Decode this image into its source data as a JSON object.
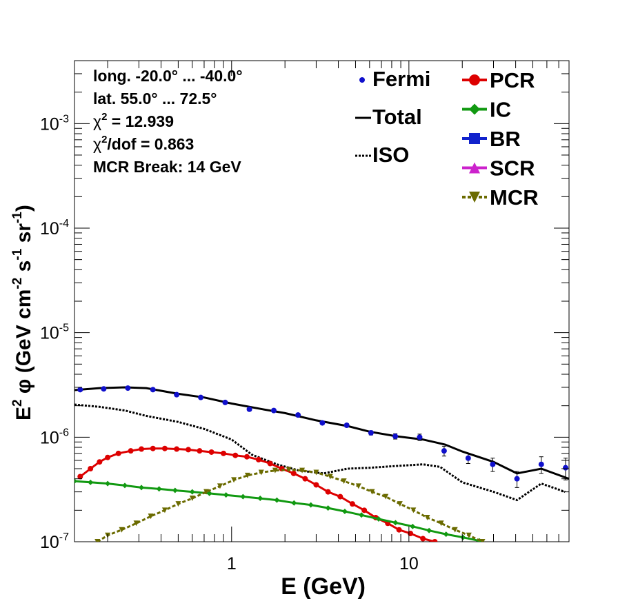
{
  "chart_data": {
    "type": "line",
    "xlabel": "E (GeV)",
    "ylabel_main": "E",
    "ylabel_rest": " φ (GeV cm",
    "ylabel_unit1": " s",
    "ylabel_unit2": " sr",
    "ylabel_sup2": "2",
    "ylabel_supm2": "-2",
    "ylabel_supm1": "-1",
    "xscale": "log",
    "yscale": "log",
    "xlim": [
      0.13,
      80
    ],
    "ylim": [
      1e-07,
      0.004
    ],
    "x_tick_labels": [
      {
        "value": 1,
        "label": "1"
      },
      {
        "value": 10,
        "label": "10"
      }
    ],
    "y_tick_labels": [
      {
        "value": 1e-07,
        "base": "10",
        "exp": "-7"
      },
      {
        "value": 1e-06,
        "base": "10",
        "exp": "-6"
      },
      {
        "value": 1e-05,
        "base": "10",
        "exp": "-5"
      },
      {
        "value": 0.0001,
        "base": "10",
        "exp": "-4"
      },
      {
        "value": 0.001,
        "base": "10",
        "exp": "-3"
      }
    ],
    "info_lines": [
      {
        "text": "long. -20.0° ... -40.0°"
      },
      {
        "text": "lat. 55.0° ... 72.5°"
      },
      {
        "pre": "χ",
        "sup": "2",
        "text": " = 12.939"
      },
      {
        "pre": "χ",
        "sup": "2",
        "text": "/dof = 0.863"
      },
      {
        "text": "MCR Break: 14 GeV"
      }
    ],
    "legend_left": [
      {
        "label": "Fermi",
        "style": "point"
      },
      {
        "label": "Total",
        "style": "solid"
      },
      {
        "label": "ISO",
        "style": "dotted"
      }
    ],
    "legend_right": [
      {
        "label": "PCR",
        "color": "#dd0000",
        "marker": "circle"
      },
      {
        "label": "IC",
        "color": "#119911",
        "marker": "diamond"
      },
      {
        "label": "BR",
        "color": "#1122cc",
        "marker": "square"
      },
      {
        "label": "SCR",
        "color": "#cc22cc",
        "marker": "triangle-up"
      },
      {
        "label": "MCR",
        "color": "#6b6b00",
        "marker": "triangle-down",
        "dashed": true
      }
    ],
    "series": [
      {
        "name": "Fermi",
        "kind": "errorpoints",
        "color": "#1010cc",
        "points": [
          {
            "x": 0.14,
            "y": 2.85e-06,
            "err": 8e-08
          },
          {
            "x": 0.19,
            "y": 2.9e-06,
            "err": 8e-08
          },
          {
            "x": 0.26,
            "y": 2.95e-06,
            "err": 8e-08
          },
          {
            "x": 0.36,
            "y": 2.85e-06,
            "err": 8e-08
          },
          {
            "x": 0.49,
            "y": 2.55e-06,
            "err": 8e-08
          },
          {
            "x": 0.67,
            "y": 2.4e-06,
            "err": 8e-08
          },
          {
            "x": 0.92,
            "y": 2.15e-06,
            "err": 7e-08
          },
          {
            "x": 1.26,
            "y": 1.85e-06,
            "err": 6e-08
          },
          {
            "x": 1.73,
            "y": 1.8e-06,
            "err": 6e-08
          },
          {
            "x": 2.37,
            "y": 1.63e-06,
            "err": 6e-08
          },
          {
            "x": 3.25,
            "y": 1.37e-06,
            "err": 5e-08
          },
          {
            "x": 4.46,
            "y": 1.3e-06,
            "err": 5e-08
          },
          {
            "x": 6.11,
            "y": 1.1e-06,
            "err": 5e-08
          },
          {
            "x": 8.38,
            "y": 1.02e-06,
            "err": 6e-08
          },
          {
            "x": 11.5,
            "y": 1e-06,
            "err": 7e-08
          },
          {
            "x": 15.8,
            "y": 7.4e-07,
            "err": 8e-08
          },
          {
            "x": 21.6,
            "y": 6.3e-07,
            "err": 7e-08
          },
          {
            "x": 29.7,
            "y": 5.5e-07,
            "err": 8e-08
          },
          {
            "x": 40.7,
            "y": 4e-07,
            "err": 7e-08
          },
          {
            "x": 55.8,
            "y": 5.5e-07,
            "err": 1e-07
          },
          {
            "x": 76.5,
            "y": 5.1e-07,
            "err": 1.2e-07
          }
        ]
      },
      {
        "name": "Total",
        "kind": "line",
        "color": "#000000",
        "dash": "",
        "points": [
          [
            0.13,
            2.82e-06
          ],
          [
            0.18,
            2.95e-06
          ],
          [
            0.25,
            3e-06
          ],
          [
            0.33,
            2.95e-06
          ],
          [
            0.5,
            2.6e-06
          ],
          [
            0.7,
            2.4e-06
          ],
          [
            1.0,
            2.1e-06
          ],
          [
            1.5,
            1.85e-06
          ],
          [
            2.0,
            1.7e-06
          ],
          [
            3.0,
            1.45e-06
          ],
          [
            4.5,
            1.28e-06
          ],
          [
            6.0,
            1.13e-06
          ],
          [
            8.5,
            1.02e-06
          ],
          [
            12.0,
            9.5e-07
          ],
          [
            16.0,
            8.5e-07
          ],
          [
            20.0,
            7.3e-07
          ],
          [
            30.0,
            5.8e-07
          ],
          [
            40.7,
            4.5e-07
          ],
          [
            55.8,
            5e-07
          ],
          [
            80.0,
            4e-07
          ]
        ]
      },
      {
        "name": "ISO",
        "kind": "line",
        "color": "#000000",
        "dash": "3,2",
        "points": [
          [
            0.13,
            2.05e-06
          ],
          [
            0.18,
            1.95e-06
          ],
          [
            0.25,
            1.8e-06
          ],
          [
            0.33,
            1.6e-06
          ],
          [
            0.5,
            1.4e-06
          ],
          [
            0.7,
            1.2e-06
          ],
          [
            1.0,
            9.5e-07
          ],
          [
            1.3,
            6.8e-07
          ],
          [
            1.8,
            5.5e-07
          ],
          [
            2.4,
            4.8e-07
          ],
          [
            3.3,
            4.5e-07
          ],
          [
            4.5,
            5e-07
          ],
          [
            6.0,
            5.1e-07
          ],
          [
            8.5,
            5.3e-07
          ],
          [
            12.0,
            5.5e-07
          ],
          [
            15.0,
            5.2e-07
          ],
          [
            20.0,
            3.7e-07
          ],
          [
            30.0,
            3e-07
          ],
          [
            40.7,
            2.5e-07
          ],
          [
            55.8,
            3.6e-07
          ],
          [
            76.0,
            3e-07
          ]
        ]
      },
      {
        "name": "PCR",
        "kind": "marked",
        "color": "#dd0000",
        "marker": "circle",
        "points": [
          [
            0.14,
            4.2e-07
          ],
          [
            0.16,
            5e-07
          ],
          [
            0.18,
            5.8e-07
          ],
          [
            0.2,
            6.4e-07
          ],
          [
            0.23,
            7e-07
          ],
          [
            0.27,
            7.4e-07
          ],
          [
            0.31,
            7.7e-07
          ],
          [
            0.36,
            7.8e-07
          ],
          [
            0.42,
            7.8e-07
          ],
          [
            0.49,
            7.7e-07
          ],
          [
            0.57,
            7.6e-07
          ],
          [
            0.66,
            7.4e-07
          ],
          [
            0.77,
            7.2e-07
          ],
          [
            0.9,
            7e-07
          ],
          [
            1.05,
            6.7e-07
          ],
          [
            1.22,
            6.5e-07
          ],
          [
            1.42,
            6.1e-07
          ],
          [
            1.65,
            5.6e-07
          ],
          [
            1.92,
            5e-07
          ],
          [
            2.24,
            4.5e-07
          ],
          [
            2.6,
            4e-07
          ],
          [
            3.0,
            3.5e-07
          ],
          [
            3.5,
            3e-07
          ],
          [
            4.1,
            2.7e-07
          ],
          [
            4.8,
            2.3e-07
          ],
          [
            5.6,
            2e-07
          ],
          [
            6.5,
            1.7e-07
          ],
          [
            7.6,
            1.5e-07
          ],
          [
            8.8,
            1.3e-07
          ],
          [
            10.2,
            1.2e-07
          ],
          [
            12.0,
            1.07e-07
          ],
          [
            14.0,
            1e-07
          ]
        ]
      },
      {
        "name": "IC",
        "kind": "marked",
        "color": "#119911",
        "marker": "diamond",
        "points": [
          [
            0.13,
            3.8e-07
          ],
          [
            0.16,
            3.7e-07
          ],
          [
            0.2,
            3.6e-07
          ],
          [
            0.25,
            3.45e-07
          ],
          [
            0.31,
            3.3e-07
          ],
          [
            0.39,
            3.2e-07
          ],
          [
            0.48,
            3.1e-07
          ],
          [
            0.6,
            3e-07
          ],
          [
            0.75,
            2.9e-07
          ],
          [
            0.93,
            2.8e-07
          ],
          [
            1.16,
            2.7e-07
          ],
          [
            1.45,
            2.6e-07
          ],
          [
            1.8,
            2.5e-07
          ],
          [
            2.25,
            2.35e-07
          ],
          [
            2.8,
            2.25e-07
          ],
          [
            3.5,
            2.1e-07
          ],
          [
            4.35,
            1.95e-07
          ],
          [
            5.4,
            1.8e-07
          ],
          [
            6.75,
            1.65e-07
          ],
          [
            8.4,
            1.52e-07
          ],
          [
            10.5,
            1.4e-07
          ],
          [
            13.0,
            1.28e-07
          ],
          [
            16.2,
            1.18e-07
          ],
          [
            20.2,
            1.1e-07
          ],
          [
            25.0,
            1.02e-07
          ]
        ]
      },
      {
        "name": "MCR",
        "kind": "marked",
        "color": "#6b6b00",
        "marker": "triangle-down",
        "dash": "5,3",
        "points": [
          [
            0.175,
            1e-07
          ],
          [
            0.2,
            1.15e-07
          ],
          [
            0.24,
            1.3e-07
          ],
          [
            0.29,
            1.5e-07
          ],
          [
            0.35,
            1.75e-07
          ],
          [
            0.42,
            2e-07
          ],
          [
            0.5,
            2.3e-07
          ],
          [
            0.6,
            2.6e-07
          ],
          [
            0.72,
            3e-07
          ],
          [
            0.86,
            3.4e-07
          ],
          [
            1.03,
            3.9e-07
          ],
          [
            1.23,
            4.3e-07
          ],
          [
            1.47,
            4.6e-07
          ],
          [
            1.76,
            4.8e-07
          ],
          [
            2.1,
            4.9e-07
          ],
          [
            2.5,
            4.8e-07
          ],
          [
            3.0,
            4.6e-07
          ],
          [
            3.6,
            4.2e-07
          ],
          [
            4.3,
            3.8e-07
          ],
          [
            5.2,
            3.4e-07
          ],
          [
            6.2,
            3e-07
          ],
          [
            7.4,
            2.7e-07
          ],
          [
            8.9,
            2.3e-07
          ],
          [
            10.6,
            2e-07
          ],
          [
            12.7,
            1.7e-07
          ],
          [
            15.2,
            1.5e-07
          ],
          [
            18.2,
            1.3e-07
          ],
          [
            21.8,
            1.15e-07
          ],
          [
            26.0,
            1e-07
          ]
        ]
      }
    ]
  }
}
